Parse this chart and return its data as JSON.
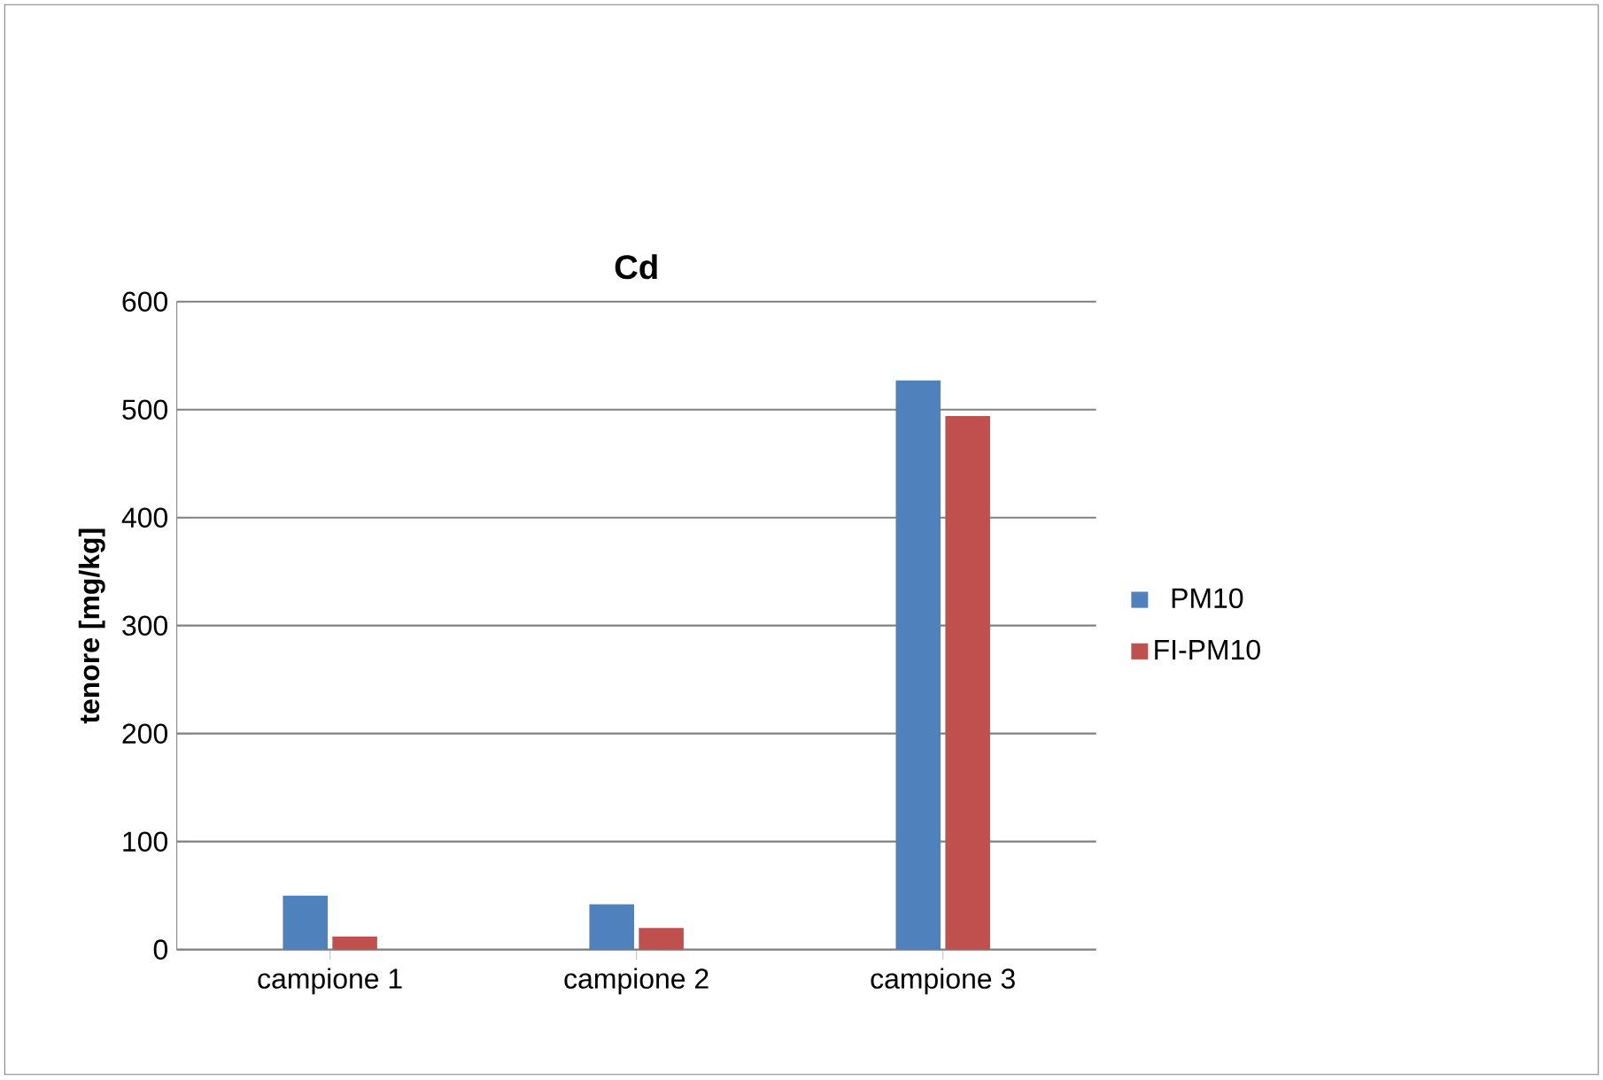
{
  "chart_data": {
    "type": "bar",
    "title": "Cd",
    "ylabel": "tenore [mg/kg]",
    "categories": [
      "campione 1",
      "campione 2",
      "campione 3"
    ],
    "series": [
      {
        "name": "PM10",
        "color": "#4f81bd",
        "values": [
          50,
          42,
          527
        ]
      },
      {
        "name": "FI-PM10",
        "color": "#c0504d",
        "values": [
          12,
          20,
          494
        ]
      }
    ],
    "ylim": [
      0,
      600
    ],
    "yticks": [
      0,
      100,
      200,
      300,
      400,
      500,
      600
    ],
    "grid": "y",
    "legend": "right"
  }
}
